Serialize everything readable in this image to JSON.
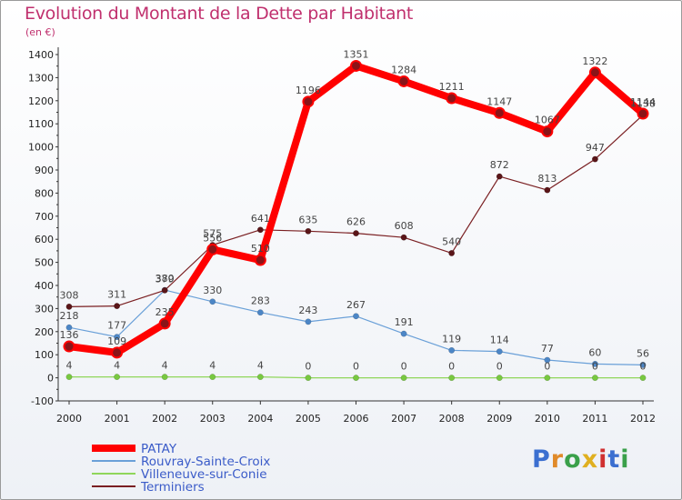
{
  "header": {
    "title": "Evolution du Montant de la Dette par Habitant",
    "unit": "(en €)"
  },
  "logo": {
    "text": "Proxiti",
    "letter_colors": [
      "#3b6fd0",
      "#e08a2a",
      "#3aa04a",
      "#e0b020",
      "#d03030",
      "#3b6fd0",
      "#3aa04a"
    ]
  },
  "chart_data": {
    "type": "line",
    "title": "Evolution du Montant de la Dette par Habitant",
    "ylabel": "(en €)",
    "xlabel": "",
    "x": [
      "2000",
      "2001",
      "2002",
      "2003",
      "2004",
      "2005",
      "2006",
      "2007",
      "2008",
      "2009",
      "2010",
      "2011",
      "2012"
    ],
    "ylim": [
      -100,
      1400
    ],
    "yticks": [
      -100,
      0,
      100,
      200,
      300,
      400,
      500,
      600,
      700,
      800,
      900,
      1000,
      1100,
      1200,
      1300,
      1400
    ],
    "grid": false,
    "legend": "bottom-left",
    "series": [
      {
        "name": "PATAY",
        "color": "#ff0000",
        "values": [
          136,
          109,
          235,
          556,
          510,
          1196,
          1351,
          1284,
          1211,
          1147,
          1067,
          1322,
          1144
        ],
        "labels": [
          "136",
          "109",
          "235",
          "556",
          "510",
          "1196",
          "1351",
          "1284",
          "1211",
          "1147",
          "1067",
          "1322",
          "1144"
        ]
      },
      {
        "name": "Rouvray-Sainte-Croix",
        "color": "#6aa0d8",
        "values": [
          218,
          177,
          380,
          330,
          283,
          243,
          267,
          191,
          119,
          114,
          77,
          60,
          56
        ],
        "labels": [
          "218",
          "177",
          "380",
          "330",
          "283",
          "243",
          "267",
          "191",
          "119",
          "114",
          "77",
          "60",
          "56"
        ]
      },
      {
        "name": "Villeneuve-sur-Conie",
        "color": "#8fd65a",
        "values": [
          4,
          4,
          4,
          4,
          4,
          0,
          0,
          0,
          0,
          0,
          0,
          0,
          0
        ],
        "labels": [
          "4",
          "4",
          "4",
          "4",
          "4",
          "0",
          "0",
          "0",
          "0",
          "0",
          "0",
          "0",
          "0"
        ]
      },
      {
        "name": "Terminiers",
        "color": "#7a1f22",
        "values": [
          308,
          311,
          379,
          575,
          641,
          635,
          626,
          608,
          540,
          872,
          813,
          947,
          1138
        ],
        "labels": [
          "308",
          "311",
          "379",
          "575",
          "641",
          "635",
          "626",
          "608",
          "540",
          "872",
          "813",
          "947",
          "1138"
        ]
      }
    ]
  }
}
